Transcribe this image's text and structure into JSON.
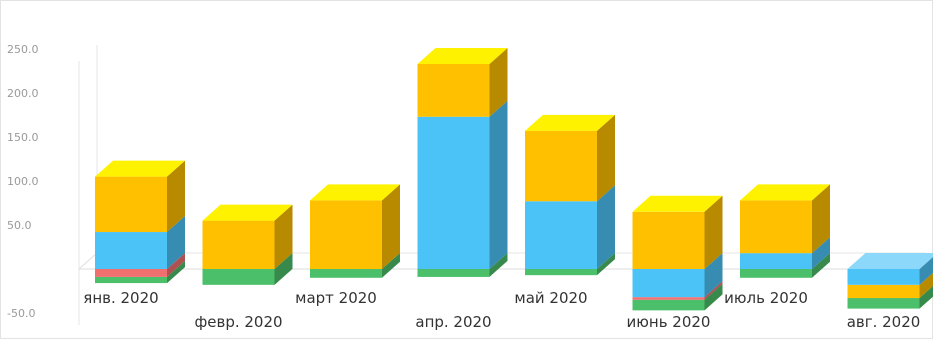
{
  "chart_data": {
    "type": "bar",
    "stacked": true,
    "three_d": true,
    "categories": [
      "янв. 2020",
      "февр. 2020",
      "март 2020",
      "апр. 2020",
      "май 2020",
      "июнь 2020",
      "июль 2020",
      "авг. 2020"
    ],
    "y_ticks": [
      "250.0",
      "200.0",
      "150.0",
      "100.0",
      "50.0",
      "-50.0"
    ],
    "ylim": [
      -50,
      250
    ],
    "grid": false,
    "series": [
      {
        "color": "#4cc3f7",
        "values": [
          42,
          0,
          0,
          173,
          77,
          -32,
          18,
          -18
        ]
      },
      {
        "color": "#ffc000",
        "values": [
          63,
          55,
          78,
          60,
          80,
          65,
          60,
          -15
        ]
      },
      {
        "color": "#f07070",
        "values": [
          -9,
          0,
          0,
          0,
          0,
          -3,
          0,
          0
        ]
      },
      {
        "color": "#4cbf6a",
        "values": [
          -7,
          -18,
          -10,
          -9,
          -7,
          -12,
          -10,
          -12
        ]
      }
    ]
  }
}
